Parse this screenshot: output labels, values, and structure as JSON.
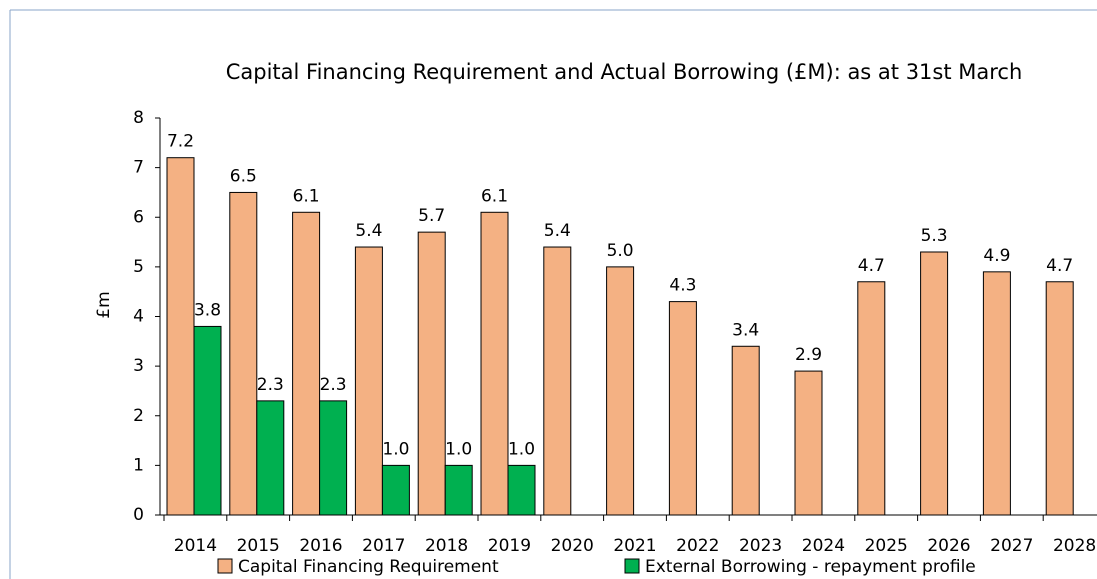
{
  "chart_data": {
    "type": "bar",
    "title": "Capital Financing Requirement and Actual Borrowing (£M): as at 31st March",
    "y_label": "£m",
    "categories": [
      "2014",
      "2015",
      "2016",
      "2017",
      "2018",
      "2019",
      "2020",
      "2021",
      "2022",
      "2023",
      "2024",
      "2025",
      "2026",
      "2027",
      "2028"
    ],
    "series": [
      {
        "name": "Capital Financing Requirement",
        "color": "#f4b183",
        "values": [
          7.2,
          6.5,
          6.1,
          5.4,
          5.7,
          6.1,
          5.4,
          5.0,
          4.3,
          3.4,
          2.9,
          4.7,
          5.3,
          4.9,
          4.7
        ],
        "value_labels": [
          "7.2",
          "6.5",
          "6.1",
          "5.4",
          "5.7",
          "6.1",
          "5.4",
          "5.0",
          "4.3",
          "3.4",
          "2.9",
          "4.7",
          "5.3",
          "4.9",
          "4.7"
        ]
      },
      {
        "name": "External Borrowing - repayment profile",
        "color": "#00b050",
        "values": [
          3.8,
          2.3,
          2.3,
          1.0,
          1.0,
          1.0,
          null,
          null,
          null,
          null,
          null,
          null,
          null,
          null,
          null
        ],
        "value_labels": [
          "3.8",
          "2.3",
          "2.3",
          "1.0",
          "1.0",
          "1.0",
          null,
          null,
          null,
          null,
          null,
          null,
          null,
          null,
          null
        ]
      }
    ],
    "ylim": [
      0,
      8
    ],
    "yticks": [
      0,
      1,
      2,
      3,
      4,
      5,
      6,
      7,
      8
    ],
    "legend": "bottom"
  }
}
